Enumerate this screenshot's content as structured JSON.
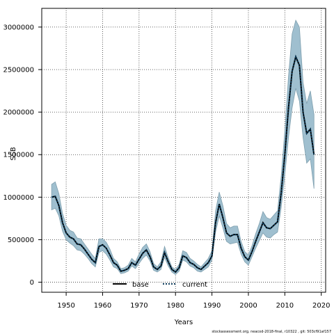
{
  "chart_data": {
    "type": "line",
    "xlabel": "Years",
    "ylabel": "SSB",
    "xlim": [
      1943.3,
      2021.2
    ],
    "ylim": [
      -118000,
      3220000
    ],
    "xticks": [
      1950,
      1960,
      1970,
      1980,
      1990,
      2000,
      2010,
      2020
    ],
    "yticks": [
      0,
      500000,
      1000000,
      1500000,
      2000000,
      2500000,
      3000000
    ],
    "xtick_labels": [
      "1950",
      "1960",
      "1970",
      "1980",
      "1990",
      "2000",
      "2010",
      "2020"
    ],
    "ytick_labels": [
      "0",
      "500000",
      "1000000",
      "1500000",
      "2000000",
      "2500000",
      "3000000"
    ],
    "grid": true,
    "legend_position": "bottom-left",
    "colors": {
      "band_fill": "#9fbfcf",
      "band_stroke": "#7f9fae",
      "base_line": "#000000",
      "current_line": "#0a3a5a"
    },
    "footer": "stockassessment.org, neacod-2018-final, r10322 , git: 503cf91af157",
    "series": [
      {
        "name": "base",
        "x": [
          1946,
          1947,
          1948,
          1949,
          1950,
          1951,
          1952,
          1953,
          1954,
          1955,
          1956,
          1957,
          1958,
          1959,
          1960,
          1961,
          1962,
          1963,
          1964,
          1965,
          1966,
          1967,
          1968,
          1969,
          1970,
          1971,
          1972,
          1973,
          1974,
          1975,
          1976,
          1977,
          1978,
          1979,
          1980,
          1981,
          1982,
          1983,
          1984,
          1985,
          1986,
          1987,
          1988,
          1989,
          1990,
          1991,
          1992,
          1993,
          1994,
          1995,
          1996,
          1997,
          1998,
          1999,
          2000,
          2001,
          2002,
          2003,
          2004,
          2005,
          2006,
          2007,
          2008,
          2009,
          2010,
          2011,
          2012,
          2013,
          2014,
          2015,
          2016,
          2017,
          2018
        ],
        "y": [
          1000000,
          1010000,
          900000,
          700000,
          580000,
          530000,
          510000,
          450000,
          440000,
          390000,
          330000,
          270000,
          230000,
          420000,
          440000,
          400000,
          320000,
          230000,
          200000,
          130000,
          140000,
          160000,
          230000,
          200000,
          270000,
          340000,
          380000,
          300000,
          180000,
          150000,
          190000,
          350000,
          240000,
          150000,
          120000,
          170000,
          310000,
          290000,
          230000,
          210000,
          170000,
          150000,
          190000,
          230000,
          310000,
          700000,
          920000,
          760000,
          580000,
          540000,
          560000,
          560000,
          400000,
          300000,
          260000,
          360000,
          480000,
          590000,
          700000,
          640000,
          630000,
          670000,
          710000,
          1050000,
          1500000,
          2050000,
          2480000,
          2650000,
          2550000,
          2000000,
          1750000,
          1800000,
          1500000
        ]
      },
      {
        "name": "current",
        "x": [
          1946,
          1947,
          1948,
          1949,
          1950,
          1951,
          1952,
          1953,
          1954,
          1955,
          1956,
          1957,
          1958,
          1959,
          1960,
          1961,
          1962,
          1963,
          1964,
          1965,
          1966,
          1967,
          1968,
          1969,
          1970,
          1971,
          1972,
          1973,
          1974,
          1975,
          1976,
          1977,
          1978,
          1979,
          1980,
          1981,
          1982,
          1983,
          1984,
          1985,
          1986,
          1987,
          1988,
          1989,
          1990,
          1991,
          1992,
          1993,
          1994,
          1995,
          1996,
          1997,
          1998,
          1999,
          2000,
          2001,
          2002,
          2003,
          2004,
          2005,
          2006,
          2007,
          2008,
          2009,
          2010,
          2011,
          2012,
          2013,
          2014,
          2015,
          2016,
          2017,
          2018
        ],
        "y": [
          1000000,
          1010000,
          900000,
          700000,
          580000,
          530000,
          510000,
          450000,
          440000,
          390000,
          330000,
          270000,
          230000,
          420000,
          440000,
          400000,
          320000,
          230000,
          200000,
          130000,
          140000,
          160000,
          230000,
          200000,
          270000,
          340000,
          380000,
          300000,
          180000,
          150000,
          190000,
          350000,
          240000,
          150000,
          120000,
          170000,
          310000,
          290000,
          230000,
          210000,
          170000,
          150000,
          190000,
          230000,
          310000,
          700000,
          920000,
          760000,
          580000,
          540000,
          560000,
          560000,
          400000,
          300000,
          260000,
          360000,
          480000,
          590000,
          700000,
          640000,
          630000,
          670000,
          710000,
          1050000,
          1500000,
          2050000,
          2480000,
          2650000,
          2550000,
          2000000,
          1750000,
          1800000,
          1500000
        ]
      }
    ],
    "confidence_band": {
      "x": [
        1946,
        1947,
        1948,
        1949,
        1950,
        1951,
        1952,
        1953,
        1954,
        1955,
        1956,
        1957,
        1958,
        1959,
        1960,
        1961,
        1962,
        1963,
        1964,
        1965,
        1966,
        1967,
        1968,
        1969,
        1970,
        1971,
        1972,
        1973,
        1974,
        1975,
        1976,
        1977,
        1978,
        1979,
        1980,
        1981,
        1982,
        1983,
        1984,
        1985,
        1986,
        1987,
        1988,
        1989,
        1990,
        1991,
        1992,
        1993,
        1994,
        1995,
        1996,
        1997,
        1998,
        1999,
        2000,
        2001,
        2002,
        2003,
        2004,
        2005,
        2006,
        2007,
        2008,
        2009,
        2010,
        2011,
        2012,
        2013,
        2014,
        2015,
        2016,
        2017,
        2018
      ],
      "lower": [
        850000,
        870000,
        780000,
        600000,
        500000,
        460000,
        430000,
        380000,
        370000,
        330000,
        280000,
        220000,
        180000,
        350000,
        370000,
        330000,
        260000,
        180000,
        160000,
        100000,
        110000,
        130000,
        190000,
        160000,
        220000,
        280000,
        320000,
        250000,
        140000,
        120000,
        150000,
        290000,
        190000,
        120000,
        90000,
        130000,
        260000,
        240000,
        190000,
        170000,
        130000,
        120000,
        150000,
        180000,
        260000,
        590000,
        780000,
        640000,
        480000,
        450000,
        460000,
        470000,
        330000,
        240000,
        200000,
        300000,
        400000,
        490000,
        580000,
        530000,
        520000,
        560000,
        590000,
        880000,
        1260000,
        1700000,
        2050000,
        2280000,
        2130000,
        1700000,
        1400000,
        1450000,
        1100000
      ],
      "upper": [
        1150000,
        1180000,
        1040000,
        810000,
        670000,
        610000,
        590000,
        520000,
        510000,
        450000,
        390000,
        330000,
        280000,
        510000,
        510000,
        470000,
        390000,
        280000,
        240000,
        160000,
        170000,
        200000,
        280000,
        240000,
        330000,
        410000,
        450000,
        360000,
        220000,
        180000,
        240000,
        420000,
        290000,
        180000,
        150000,
        210000,
        370000,
        350000,
        280000,
        250000,
        210000,
        180000,
        230000,
        280000,
        370000,
        840000,
        1060000,
        900000,
        690000,
        640000,
        660000,
        660000,
        480000,
        360000,
        320000,
        430000,
        570000,
        690000,
        830000,
        760000,
        740000,
        790000,
        840000,
        1250000,
        1780000,
        2420000,
        2920000,
        3080000,
        3000000,
        2350000,
        2100000,
        2250000,
        1970000
      ]
    }
  }
}
